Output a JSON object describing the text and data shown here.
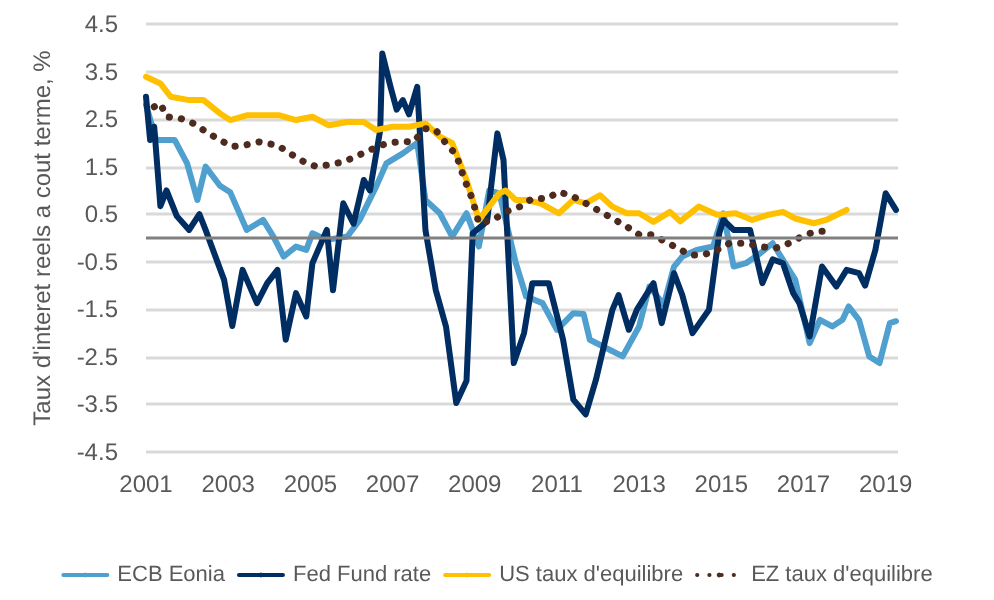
{
  "chart_data": {
    "type": "line",
    "ylabel": "Taux d'interet reels a cout terme, %",
    "xlim": [
      2001,
      2019.3
    ],
    "xticks": [
      2001,
      2003,
      2005,
      2007,
      2009,
      2011,
      2013,
      2015,
      2017,
      2019
    ],
    "ylim": [
      -4.5,
      4.5
    ],
    "yticks": [
      -4.5,
      -3.5,
      -2.5,
      -1.5,
      -0.5,
      0.5,
      1.5,
      2.5,
      3.5,
      4.5
    ],
    "grid": "y",
    "legend": "bottom",
    "marker": "none",
    "line_style": "solid",
    "ref_lines": [
      {
        "axis": "y",
        "value": 0,
        "color": "#808080"
      }
    ],
    "series": [
      {
        "name": "ECB Eonia",
        "color": "#4f9fcf",
        "x": [
          2001.0,
          2001.25,
          2001.7,
          2002.0,
          2002.25,
          2002.45,
          2002.8,
          2003.05,
          2003.45,
          2003.85,
          2004.1,
          2004.35,
          2004.65,
          2004.9,
          2005.05,
          2005.4,
          2005.9,
          2006.2,
          2006.6,
          2006.85,
          2007.25,
          2007.6,
          2007.8,
          2008.15,
          2008.45,
          2008.8,
          2009.1,
          2009.35,
          2009.6,
          2010.0,
          2010.25,
          2010.65,
          2011.0,
          2011.4,
          2011.65,
          2011.8,
          2012.1,
          2012.6,
          2013.0,
          2013.25,
          2013.6,
          2013.85,
          2014.05,
          2014.4,
          2014.8,
          2015.05,
          2015.3,
          2015.6,
          2015.95,
          2016.25,
          2016.6,
          2016.8,
          2017.15,
          2017.4,
          2017.7,
          2017.95,
          2018.1,
          2018.35,
          2018.6,
          2018.85,
          2019.1,
          2019.25
        ],
        "values": [
          2.8,
          2.06,
          2.06,
          1.57,
          0.8,
          1.5,
          1.1,
          0.96,
          0.17,
          0.38,
          0.03,
          -0.39,
          -0.18,
          -0.25,
          0.1,
          -0.04,
          0.03,
          0.38,
          1.08,
          1.57,
          1.78,
          2.0,
          0.8,
          0.52,
          0.03,
          0.52,
          -0.18,
          1.0,
          0.94,
          -0.53,
          -1.23,
          -1.37,
          -1.93,
          -1.58,
          -1.6,
          -2.14,
          -2.27,
          -2.49,
          -1.86,
          -1.02,
          -1.4,
          -0.6,
          -0.39,
          -0.25,
          -0.18,
          0.52,
          -0.6,
          -0.53,
          -0.32,
          -0.11,
          -0.6,
          -0.88,
          -2.21,
          -1.72,
          -1.86,
          -1.72,
          -1.44,
          -1.72,
          -2.49,
          -2.63,
          -1.79,
          -1.75
        ]
      },
      {
        "name": "Fed Fund rate",
        "color": "#002d62",
        "x": [
          2001.0,
          2001.1,
          2001.2,
          2001.35,
          2001.5,
          2001.75,
          2002.05,
          2002.3,
          2002.45,
          2002.9,
          2003.1,
          2003.35,
          2003.7,
          2003.95,
          2004.2,
          2004.4,
          2004.65,
          2004.9,
          2005.05,
          2005.4,
          2005.55,
          2005.8,
          2006.05,
          2006.3,
          2006.45,
          2006.7,
          2006.75,
          2006.95,
          2007.1,
          2007.25,
          2007.4,
          2007.6,
          2007.8,
          2008.05,
          2008.3,
          2008.55,
          2008.8,
          2008.95,
          2009.3,
          2009.55,
          2009.7,
          2009.95,
          2010.2,
          2010.4,
          2010.8,
          2011.15,
          2011.4,
          2011.7,
          2011.95,
          2012.35,
          2012.5,
          2012.75,
          2012.95,
          2013.35,
          2013.55,
          2013.85,
          2014.05,
          2014.3,
          2014.7,
          2014.95,
          2015.05,
          2015.3,
          2015.7,
          2016.0,
          2016.25,
          2016.5,
          2016.75,
          2016.9,
          2017.15,
          2017.45,
          2017.8,
          2018.05,
          2018.35,
          2018.5,
          2018.75,
          2019.0,
          2019.25
        ],
        "values": [
          2.97,
          2.06,
          2.34,
          0.67,
          1.0,
          0.46,
          0.17,
          0.5,
          0.17,
          -0.88,
          -1.85,
          -0.67,
          -1.37,
          -0.95,
          -0.67,
          -2.14,
          -1.16,
          -1.65,
          -0.53,
          0.17,
          -1.1,
          0.73,
          0.3,
          1.22,
          1.0,
          2.27,
          3.88,
          3.18,
          2.7,
          2.9,
          2.6,
          3.18,
          0.17,
          -1.09,
          -1.86,
          -3.47,
          -3.0,
          0.1,
          0.35,
          2.2,
          1.64,
          -2.63,
          -2.0,
          -0.95,
          -0.95,
          -2.14,
          -3.4,
          -3.71,
          -2.98,
          -1.51,
          -1.2,
          -1.93,
          -1.5,
          -0.95,
          -1.79,
          -0.74,
          -1.2,
          -2.0,
          -1.51,
          0.1,
          0.38,
          0.17,
          0.17,
          -0.95,
          -0.45,
          -0.53,
          -1.16,
          -1.37,
          -2.07,
          -0.6,
          -1.02,
          -0.67,
          -0.74,
          -1.0,
          -0.25,
          0.94,
          0.59
        ]
      },
      {
        "name": "US taux d'equilibre",
        "color": "#ffc000",
        "x": [
          2001.0,
          2001.35,
          2001.6,
          2002.05,
          2002.4,
          2002.8,
          2003.05,
          2003.45,
          2004.25,
          2004.65,
          2005.05,
          2005.45,
          2005.9,
          2006.3,
          2006.6,
          2007.0,
          2007.4,
          2007.8,
          2008.15,
          2008.45,
          2008.8,
          2009.1,
          2009.6,
          2009.75,
          2010.0,
          2010.25,
          2010.6,
          2011.05,
          2011.4,
          2011.7,
          2012.05,
          2012.35,
          2012.7,
          2013.0,
          2013.35,
          2013.75,
          2014.0,
          2014.45,
          2014.9,
          2015.35,
          2015.75,
          2016.15,
          2016.5,
          2016.8,
          2017.25,
          2017.55,
          2018.05
        ],
        "values": [
          3.39,
          3.25,
          2.97,
          2.9,
          2.9,
          2.62,
          2.48,
          2.58,
          2.58,
          2.48,
          2.55,
          2.37,
          2.44,
          2.44,
          2.27,
          2.34,
          2.34,
          2.41,
          2.13,
          2.0,
          1.22,
          0.38,
          0.94,
          1.0,
          0.8,
          0.8,
          0.73,
          0.52,
          0.8,
          0.73,
          0.9,
          0.66,
          0.52,
          0.52,
          0.34,
          0.55,
          0.35,
          0.66,
          0.49,
          0.52,
          0.38,
          0.49,
          0.55,
          0.41,
          0.31,
          0.38,
          0.59
        ]
      },
      {
        "name": "EZ taux d'equilibre",
        "color": "#4d2b1f",
        "line_style": "dotted",
        "x": [
          2001.2,
          2001.35,
          2001.5,
          2001.85,
          2002.15,
          2002.45,
          2002.8,
          2003.1,
          2003.45,
          2003.75,
          2004.2,
          2004.5,
          2004.85,
          2005.15,
          2005.45,
          2005.8,
          2006.1,
          2006.45,
          2006.85,
          2007.2,
          2007.5,
          2007.8,
          2008.05,
          2008.3,
          2008.55,
          2008.7,
          2008.8,
          2008.95,
          2009.1,
          2009.45,
          2009.75,
          2010.1,
          2010.4,
          2010.75,
          2011.05,
          2011.4,
          2011.7,
          2012.05,
          2012.35,
          2012.7,
          2013.0,
          2013.3,
          2013.65,
          2013.95,
          2014.25,
          2014.55,
          2014.9,
          2015.2,
          2015.6,
          2015.95,
          2016.3,
          2016.65,
          2017.0,
          2017.3,
          2017.7
        ],
        "values": [
          2.76,
          2.83,
          2.55,
          2.51,
          2.41,
          2.24,
          2.06,
          1.92,
          1.96,
          2.02,
          1.95,
          1.78,
          1.6,
          1.5,
          1.54,
          1.6,
          1.71,
          1.85,
          1.99,
          2.03,
          2.02,
          2.3,
          2.27,
          1.99,
          1.75,
          1.36,
          1.12,
          0.8,
          0.31,
          0.38,
          0.55,
          0.66,
          0.83,
          0.83,
          0.97,
          0.87,
          0.73,
          0.56,
          0.41,
          0.24,
          0.07,
          0.07,
          -0.08,
          -0.22,
          -0.36,
          -0.36,
          -0.25,
          -0.11,
          -0.11,
          -0.18,
          -0.22,
          -0.11,
          0.05,
          0.14,
          0.14
        ]
      }
    ]
  }
}
